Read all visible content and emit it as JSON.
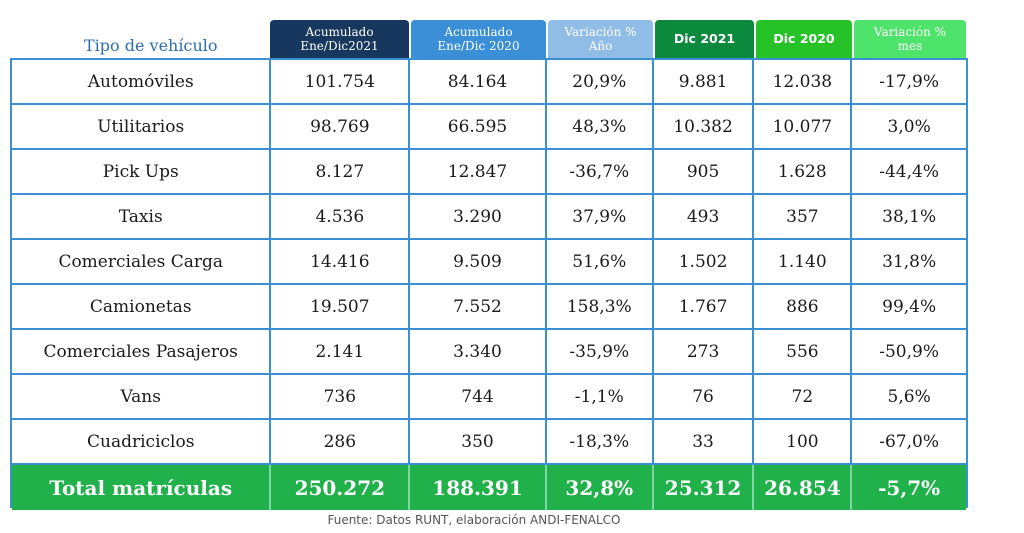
{
  "table": {
    "row_header_label": "Tipo de vehículo",
    "columns": [
      {
        "line1": "Acumulado",
        "line2": "Ene/Dic2021",
        "color": "#17375e"
      },
      {
        "line1": "Acumulado",
        "line2": "Ene/Dic 2020",
        "color": "#3a8fd6"
      },
      {
        "line1": "Variación %",
        "line2": "Año",
        "color": "#8fbde6"
      },
      {
        "line1": "Dic 2021",
        "line2": "",
        "color": "#0b8a3e"
      },
      {
        "line1": "Dic 2020",
        "line2": "",
        "color": "#27c228"
      },
      {
        "line1": "Variación %",
        "line2": "mes",
        "color": "#4ee36a"
      }
    ],
    "rows": [
      {
        "label": "Automóviles",
        "values": [
          "101.754",
          "84.164",
          "20,9%",
          "9.881",
          "12.038",
          "-17,9%"
        ]
      },
      {
        "label": "Utilitarios",
        "values": [
          "98.769",
          "66.595",
          "48,3%",
          "10.382",
          "10.077",
          "3,0%"
        ]
      },
      {
        "label": "Pick Ups",
        "values": [
          "8.127",
          "12.847",
          "-36,7%",
          "905",
          "1.628",
          "-44,4%"
        ]
      },
      {
        "label": "Taxis",
        "values": [
          "4.536",
          "3.290",
          "37,9%",
          "493",
          "357",
          "38,1%"
        ]
      },
      {
        "label": "Comerciales Carga",
        "values": [
          "14.416",
          "9.509",
          "51,6%",
          "1.502",
          "1.140",
          "31,8%"
        ]
      },
      {
        "label": "Camionetas",
        "values": [
          "19.507",
          "7.552",
          "158,3%",
          "1.767",
          "886",
          "99,4%"
        ]
      },
      {
        "label": "Comerciales Pasajeros",
        "values": [
          "2.141",
          "3.340",
          "-35,9%",
          "273",
          "556",
          "-50,9%"
        ]
      },
      {
        "label": "Vans",
        "values": [
          "736",
          "744",
          "-1,1%",
          "76",
          "72",
          "5,6%"
        ]
      },
      {
        "label": "Cuadriciclos",
        "values": [
          "286",
          "350",
          "-18,3%",
          "33",
          "100",
          "-67,0%"
        ]
      }
    ],
    "total": {
      "label": "Total matrículas",
      "values": [
        "250.272",
        "188.391",
        "32,8%",
        "25.312",
        "26.854",
        "-5,7%"
      ]
    }
  },
  "source": "Fuente: Datos RUNT, elaboración ANDI-FENALCO"
}
